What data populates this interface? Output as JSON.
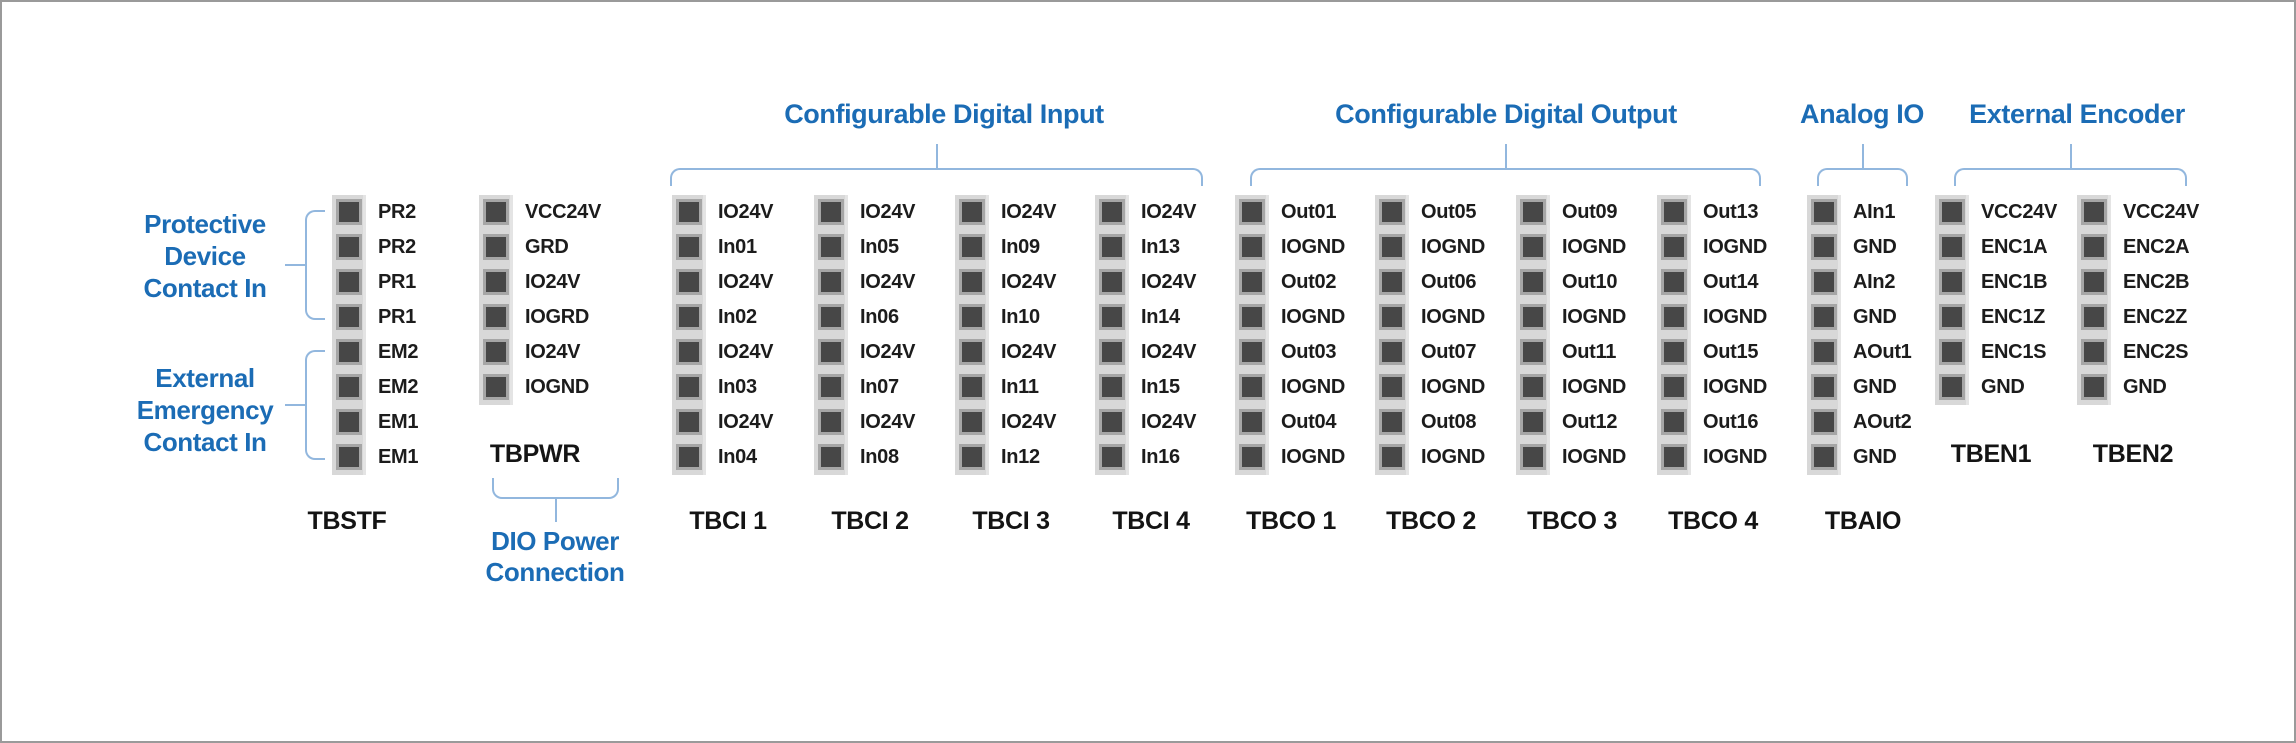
{
  "palette": {
    "accent_blue": "#1b6cb5",
    "bracket_blue": "#92b7de",
    "strip_gray": "#d8d8d8",
    "pin_dark": "#474747",
    "pin_ring": "#a6a6a6",
    "text_black": "#1c1c1c",
    "frame_border": "#9a9a9a"
  },
  "groups": {
    "digital_input": {
      "title": "Configurable Digital Input"
    },
    "digital_output": {
      "title": "Configurable Digital Output"
    },
    "analog_io": {
      "title": "Analog IO"
    },
    "external_encoder": {
      "title": "External Encoder"
    }
  },
  "captions": {
    "protective": {
      "lines": [
        "Protective",
        "Device",
        "Contact In"
      ]
    },
    "emergency": {
      "lines": [
        "External",
        "Emergency",
        "Contact In"
      ]
    },
    "dio_power": {
      "lines": [
        "DIO Power",
        "Connection"
      ]
    }
  },
  "terminals": [
    {
      "id": "tbstf",
      "name": "TBSTF",
      "pins": [
        "PR2",
        "PR2",
        "PR1",
        "PR1",
        "EM2",
        "EM2",
        "EM1",
        "EM1"
      ]
    },
    {
      "id": "tbpwr",
      "name": "TBPWR",
      "pins": [
        "VCC24V",
        "GRD",
        "IO24V",
        "IOGRD",
        "IO24V",
        "IOGND"
      ]
    },
    {
      "id": "tbci1",
      "name": "TBCI 1",
      "pins": [
        "IO24V",
        "In01",
        "IO24V",
        "In02",
        "IO24V",
        "In03",
        "IO24V",
        "In04"
      ]
    },
    {
      "id": "tbci2",
      "name": "TBCI 2",
      "pins": [
        "IO24V",
        "In05",
        "IO24V",
        "In06",
        "IO24V",
        "In07",
        "IO24V",
        "In08"
      ]
    },
    {
      "id": "tbci3",
      "name": "TBCI 3",
      "pins": [
        "IO24V",
        "In09",
        "IO24V",
        "In10",
        "IO24V",
        "In11",
        "IO24V",
        "In12"
      ]
    },
    {
      "id": "tbci4",
      "name": "TBCI 4",
      "pins": [
        "IO24V",
        "In13",
        "IO24V",
        "In14",
        "IO24V",
        "In15",
        "IO24V",
        "In16"
      ]
    },
    {
      "id": "tbco1",
      "name": "TBCO 1",
      "pins": [
        "Out01",
        "IOGND",
        "Out02",
        "IOGND",
        "Out03",
        "IOGND",
        "Out04",
        "IOGND"
      ]
    },
    {
      "id": "tbco2",
      "name": "TBCO 2",
      "pins": [
        "Out05",
        "IOGND",
        "Out06",
        "IOGND",
        "Out07",
        "IOGND",
        "Out08",
        "IOGND"
      ]
    },
    {
      "id": "tbco3",
      "name": "TBCO 3",
      "pins": [
        "Out09",
        "IOGND",
        "Out10",
        "IOGND",
        "Out11",
        "IOGND",
        "Out12",
        "IOGND"
      ]
    },
    {
      "id": "tbco4",
      "name": "TBCO 4",
      "pins": [
        "Out13",
        "IOGND",
        "Out14",
        "IOGND",
        "Out15",
        "IOGND",
        "Out16",
        "IOGND"
      ]
    },
    {
      "id": "tbaio",
      "name": "TBAIO",
      "pins": [
        "AIn1",
        "GND",
        "AIn2",
        "GND",
        "AOut1",
        "GND",
        "AOut2",
        "GND"
      ]
    },
    {
      "id": "tben1",
      "name": "TBEN1",
      "pins": [
        "VCC24V",
        "ENC1A",
        "ENC1B",
        "ENC1Z",
        "ENC1S",
        "GND"
      ]
    },
    {
      "id": "tben2",
      "name": "TBEN2",
      "pins": [
        "VCC24V",
        "ENC2A",
        "ENC2B",
        "ENC2Z",
        "ENC2S",
        "GND"
      ]
    }
  ]
}
